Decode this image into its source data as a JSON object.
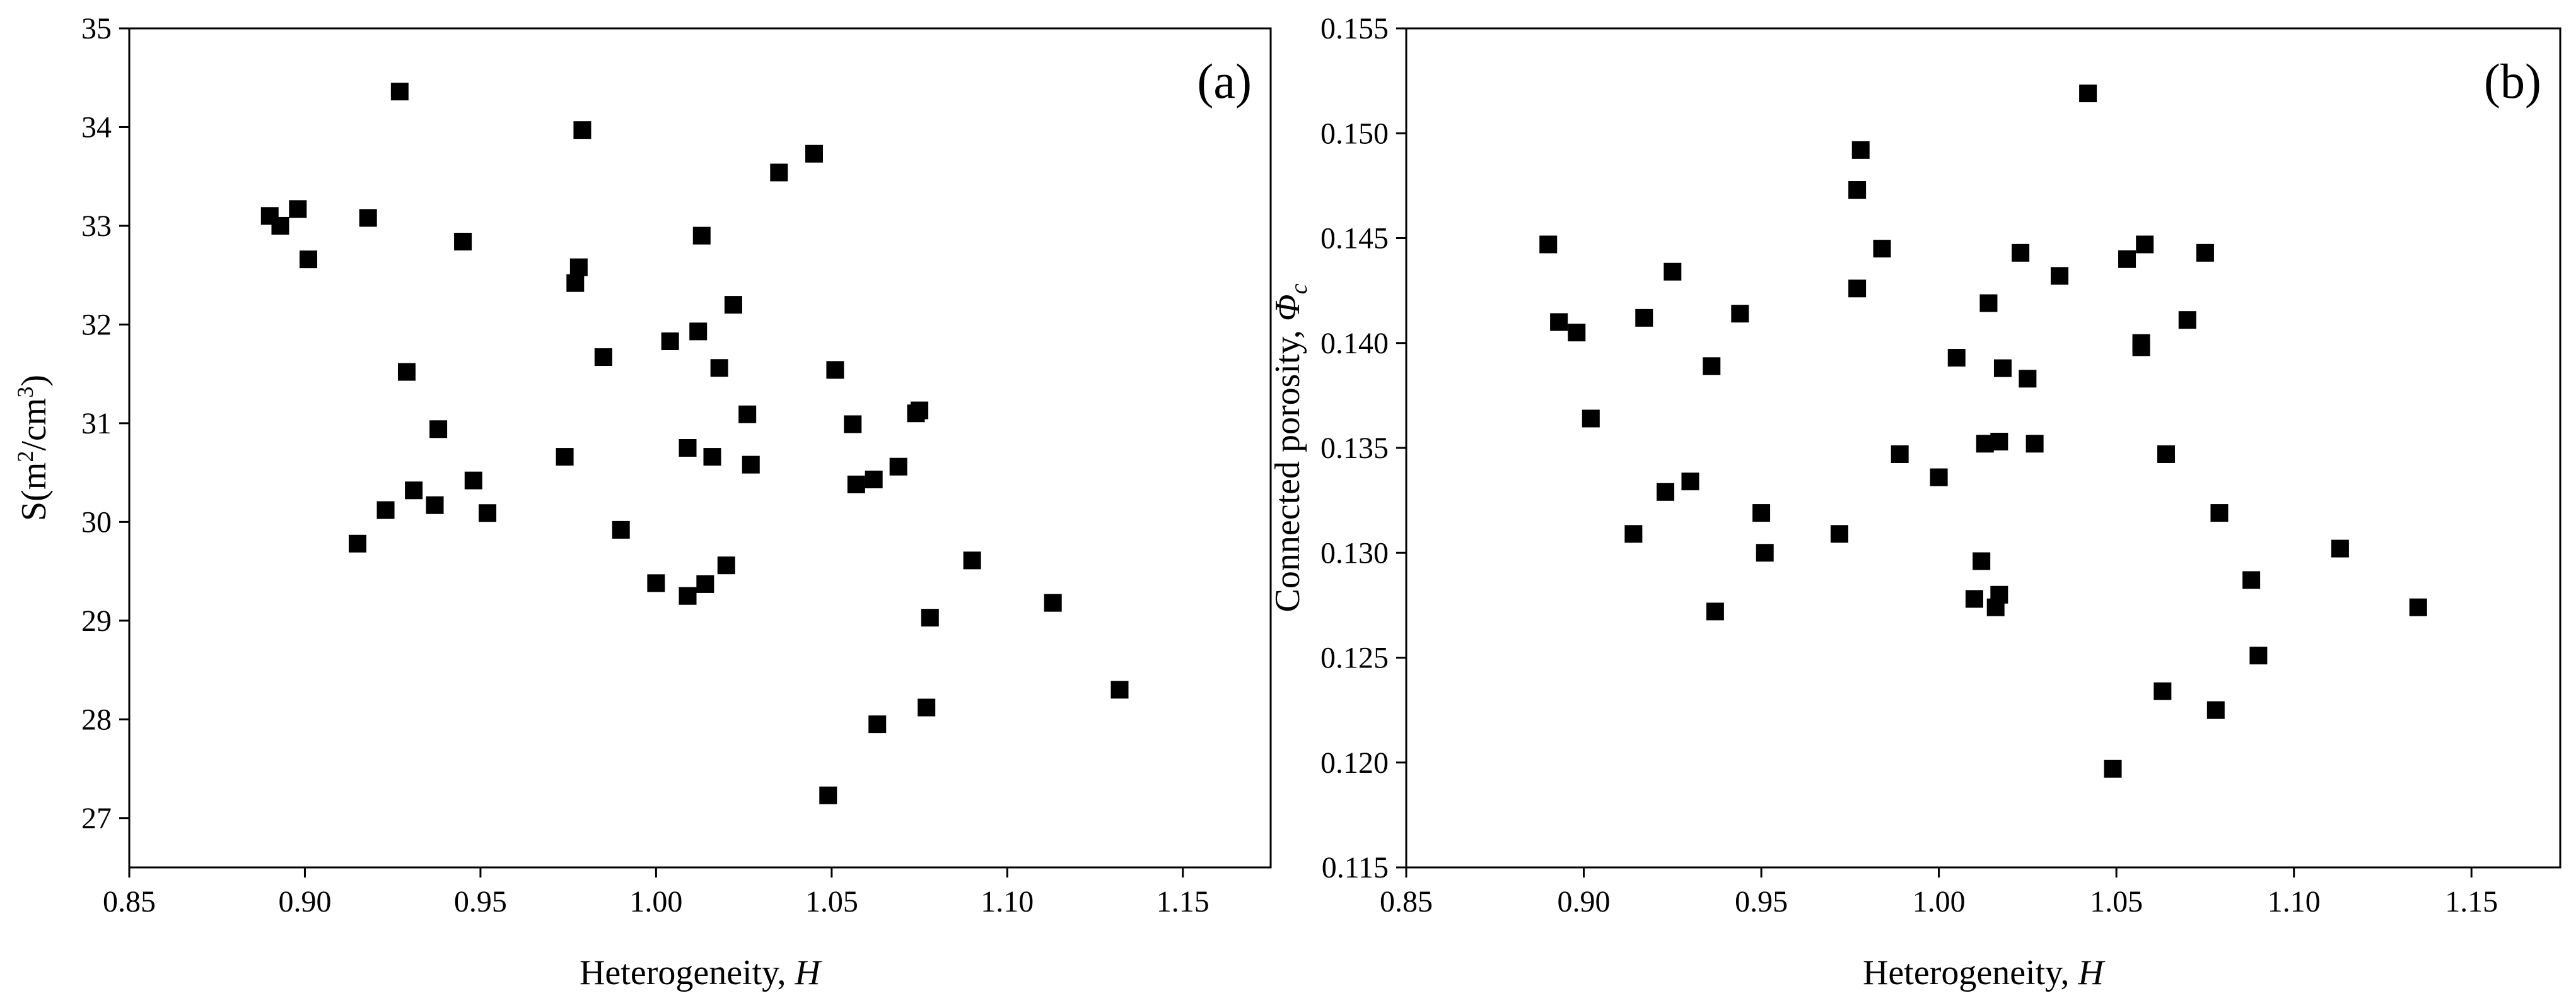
{
  "colors": {
    "marker": "#000000",
    "axis": "#000000",
    "background": "#ffffff"
  },
  "chart_data": [
    {
      "type": "scatter",
      "panel_label": "(a)",
      "title": "",
      "xlabel_main": "Heterogeneity, ",
      "xlabel_symbol": "H",
      "ylabel_main": "S(m",
      "ylabel_sup1": "2",
      "ylabel_mid": "/cm",
      "ylabel_sup2": "3",
      "ylabel_end": ")",
      "xlim": [
        0.85,
        1.175
      ],
      "ylim": [
        26.5,
        35
      ],
      "xticks": [
        0.85,
        0.9,
        0.95,
        1.0,
        1.05,
        1.1,
        1.15
      ],
      "xtick_labels": [
        "0.85",
        "0.90",
        "0.95",
        "1.00",
        "1.05",
        "1.10",
        "1.15"
      ],
      "yticks": [
        27,
        28,
        29,
        30,
        31,
        32,
        33,
        34,
        35
      ],
      "ytick_labels": [
        "27",
        "28",
        "29",
        "30",
        "31",
        "32",
        "33",
        "34",
        "35"
      ],
      "grid": false,
      "marker": "square",
      "points": [
        [
          0.89,
          33.1
        ],
        [
          0.893,
          33.0
        ],
        [
          0.898,
          33.17
        ],
        [
          0.901,
          32.66
        ],
        [
          0.915,
          29.78
        ],
        [
          0.918,
          33.08
        ],
        [
          0.923,
          30.12
        ],
        [
          0.927,
          34.36
        ],
        [
          0.929,
          31.52
        ],
        [
          0.931,
          30.32
        ],
        [
          0.937,
          30.17
        ],
        [
          0.938,
          30.94
        ],
        [
          0.945,
          32.84
        ],
        [
          0.948,
          30.42
        ],
        [
          0.952,
          30.09
        ],
        [
          0.974,
          30.66
        ],
        [
          0.977,
          32.42
        ],
        [
          0.978,
          32.58
        ],
        [
          0.979,
          33.97
        ],
        [
          0.985,
          31.67
        ],
        [
          0.99,
          29.92
        ],
        [
          1.0,
          29.38
        ],
        [
          1.004,
          31.83
        ],
        [
          1.009,
          30.75
        ],
        [
          1.009,
          29.25
        ],
        [
          1.012,
          31.93
        ],
        [
          1.013,
          32.9
        ],
        [
          1.014,
          29.37
        ],
        [
          1.016,
          30.66
        ],
        [
          1.018,
          31.56
        ],
        [
          1.02,
          29.56
        ],
        [
          1.022,
          32.2
        ],
        [
          1.026,
          31.09
        ],
        [
          1.027,
          30.58
        ],
        [
          1.035,
          33.54
        ],
        [
          1.045,
          33.73
        ],
        [
          1.049,
          27.23
        ],
        [
          1.051,
          31.54
        ],
        [
          1.056,
          30.99
        ],
        [
          1.057,
          30.38
        ],
        [
          1.062,
          30.43
        ],
        [
          1.063,
          27.95
        ],
        [
          1.069,
          30.56
        ],
        [
          1.074,
          31.1
        ],
        [
          1.075,
          31.13
        ],
        [
          1.077,
          28.12
        ],
        [
          1.078,
          29.03
        ],
        [
          1.09,
          29.61
        ],
        [
          1.113,
          29.18
        ],
        [
          1.132,
          28.3
        ]
      ]
    },
    {
      "type": "scatter",
      "panel_label": "(b)",
      "title": "",
      "xlabel_main": "Heterogeneity, ",
      "xlabel_symbol": "H",
      "ylabel_main": "Connected porosity, ",
      "ylabel_symbol": "Φ",
      "ylabel_sub": "c",
      "xlim": [
        0.85,
        1.175
      ],
      "ylim": [
        0.115,
        0.155
      ],
      "xticks": [
        0.85,
        0.9,
        0.95,
        1.0,
        1.05,
        1.1,
        1.15
      ],
      "xtick_labels": [
        "0.85",
        "0.90",
        "0.95",
        "1.00",
        "1.05",
        "1.10",
        "1.15"
      ],
      "yticks": [
        0.115,
        0.12,
        0.125,
        0.13,
        0.135,
        0.14,
        0.145,
        0.15,
        0.155
      ],
      "ytick_labels": [
        "0.115",
        "0.120",
        "0.125",
        "0.130",
        "0.135",
        "0.140",
        "0.145",
        "0.150",
        "0.155"
      ],
      "grid": false,
      "marker": "square",
      "points": [
        [
          0.89,
          0.1447
        ],
        [
          0.893,
          0.141
        ],
        [
          0.898,
          0.1405
        ],
        [
          0.902,
          0.1364
        ],
        [
          0.914,
          0.1309
        ],
        [
          0.917,
          0.1412
        ],
        [
          0.923,
          0.1329
        ],
        [
          0.925,
          0.1434
        ],
        [
          0.93,
          0.1334
        ],
        [
          0.936,
          0.1389
        ],
        [
          0.937,
          0.1272
        ],
        [
          0.944,
          0.1414
        ],
        [
          0.95,
          0.1319
        ],
        [
          0.951,
          0.13
        ],
        [
          0.972,
          0.1309
        ],
        [
          0.977,
          0.1426
        ],
        [
          0.977,
          0.1473
        ],
        [
          0.978,
          0.1492
        ],
        [
          0.984,
          0.1445
        ],
        [
          0.989,
          0.1347
        ],
        [
          1.0,
          0.1336
        ],
        [
          1.005,
          0.1393
        ],
        [
          1.01,
          0.1278
        ],
        [
          1.012,
          0.1296
        ],
        [
          1.013,
          0.1352
        ],
        [
          1.014,
          0.1419
        ],
        [
          1.016,
          0.1274
        ],
        [
          1.017,
          0.1353
        ],
        [
          1.017,
          0.128
        ],
        [
          1.018,
          0.1388
        ],
        [
          1.023,
          0.1443
        ],
        [
          1.025,
          0.1383
        ],
        [
          1.027,
          0.1352
        ],
        [
          1.034,
          0.1432
        ],
        [
          1.042,
          0.1519
        ],
        [
          1.049,
          0.1197
        ],
        [
          1.053,
          0.144
        ],
        [
          1.057,
          0.14
        ],
        [
          1.057,
          0.1398
        ],
        [
          1.058,
          0.1447
        ],
        [
          1.063,
          0.1234
        ],
        [
          1.064,
          0.1347
        ],
        [
          1.07,
          0.1411
        ],
        [
          1.075,
          0.1443
        ],
        [
          1.078,
          0.1225
        ],
        [
          1.079,
          0.1319
        ],
        [
          1.088,
          0.1287
        ],
        [
          1.09,
          0.1251
        ],
        [
          1.113,
          0.1302
        ],
        [
          1.135,
          0.1274
        ]
      ]
    }
  ]
}
